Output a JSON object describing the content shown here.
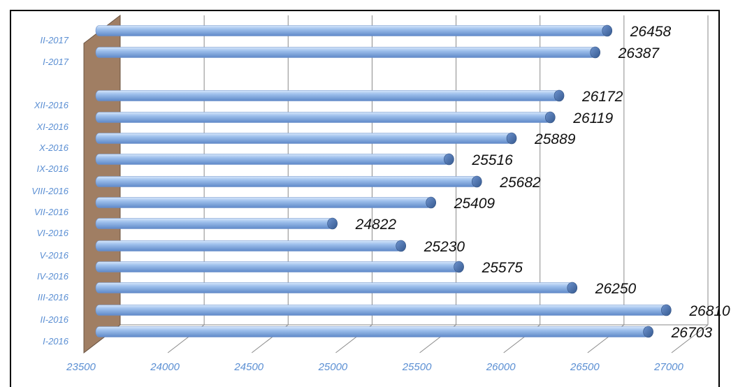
{
  "chart_data": {
    "type": "bar",
    "orientation": "horizontal",
    "title": "",
    "xlabel": "",
    "ylabel": "",
    "xlim": [
      23500,
      27000
    ],
    "xticks": [
      23500,
      24000,
      24500,
      25000,
      25500,
      26000,
      26500,
      27000
    ],
    "categories": [
      "I-2016",
      "II-2016",
      "III-2016",
      "IV-2016",
      "V-2016",
      "VI-2016",
      "VII-2016",
      "VIII-2016",
      "IX-2016",
      "X-2016",
      "XI-2016",
      "XII-2016",
      "I-2017",
      "II-2017"
    ],
    "values": [
      26703,
      26810,
      26250,
      25575,
      25230,
      24822,
      25409,
      25682,
      25516,
      25889,
      26119,
      26172,
      26387,
      26458
    ],
    "grid": true,
    "legend": "none",
    "colors": {
      "bar": "#8fb4e3",
      "bar_end": "#4f76b3",
      "wall": "#a07e63",
      "grid": "#8a8a8a",
      "tick_text": "#5b8fd3"
    }
  }
}
